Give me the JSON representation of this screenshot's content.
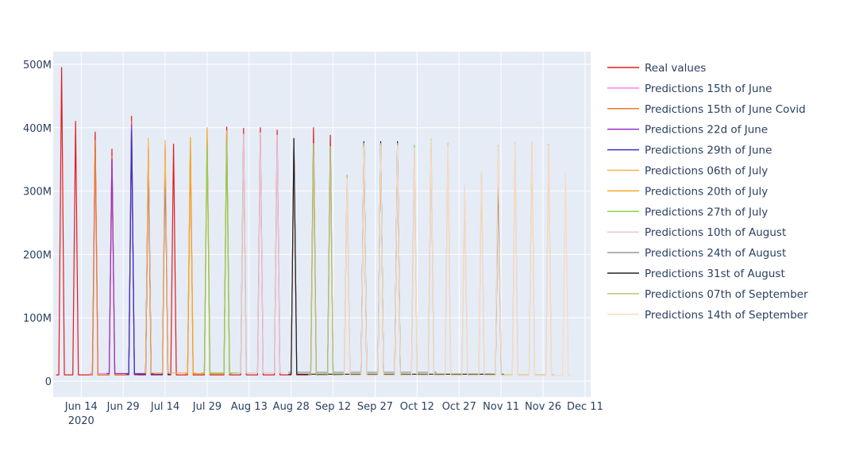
{
  "chart_data": {
    "type": "line",
    "title": "",
    "xlabel": "",
    "ylabel": "",
    "x_range": [
      "2020-06-04",
      "2020-12-13"
    ],
    "ylim": [
      -25000000,
      520000000
    ],
    "y_ticks": [
      {
        "value": 0,
        "label": "0"
      },
      {
        "value": 100000000,
        "label": "100M"
      },
      {
        "value": 200000000,
        "label": "200M"
      },
      {
        "value": 300000000,
        "label": "300M"
      },
      {
        "value": 400000000,
        "label": "400M"
      },
      {
        "value": 500000000,
        "label": "500M"
      }
    ],
    "x_ticks": [
      {
        "date": "2020-06-14",
        "label": "Jun 14",
        "sublabel": "2020"
      },
      {
        "date": "2020-06-29",
        "label": "Jun 29"
      },
      {
        "date": "2020-07-14",
        "label": "Jul 14"
      },
      {
        "date": "2020-07-29",
        "label": "Jul 29"
      },
      {
        "date": "2020-08-13",
        "label": "Aug 13"
      },
      {
        "date": "2020-08-28",
        "label": "Aug 28"
      },
      {
        "date": "2020-09-12",
        "label": "Sep 12"
      },
      {
        "date": "2020-09-27",
        "label": "Sep 27"
      },
      {
        "date": "2020-10-12",
        "label": "Oct 12"
      },
      {
        "date": "2020-10-27",
        "label": "Oct 27"
      },
      {
        "date": "2020-11-11",
        "label": "Nov 11"
      },
      {
        "date": "2020-11-26",
        "label": "Nov 26"
      },
      {
        "date": "2020-12-11",
        "label": "Dec 11"
      }
    ],
    "grid": true,
    "legend_position": "right",
    "series": [
      {
        "name": "Real values",
        "color": "#e41a1c",
        "spike_dates": [
          "2020-06-07",
          "2020-06-12",
          "2020-06-19",
          "2020-06-25",
          "2020-07-02",
          "2020-07-08",
          "2020-07-14",
          "2020-07-17",
          "2020-07-23",
          "2020-07-29",
          "2020-08-05",
          "2020-08-11",
          "2020-08-17",
          "2020-08-23",
          "2020-08-29",
          "2020-09-05",
          "2020-09-11"
        ],
        "spike_values": [
          495000000,
          410000000,
          393000000,
          366000000,
          418000000,
          370000000,
          370000000,
          374000000,
          372000000,
          382000000,
          401000000,
          399000000,
          400000000,
          396000000,
          382000000,
          400000000,
          388000000
        ],
        "base": 10000000
      },
      {
        "name": "Predictions 15th of June",
        "color": "#f781e8",
        "spike_dates": [
          "2020-06-19",
          "2020-06-25",
          "2020-07-02"
        ],
        "spike_values": [
          360000000,
          340000000,
          400000000
        ],
        "base": 12000000
      },
      {
        "name": "Predictions 15th of June Covid",
        "color": "#e87d2c",
        "spike_dates": [
          "2020-06-19",
          "2020-06-25",
          "2020-07-02"
        ],
        "spike_values": [
          380000000,
          355000000,
          410000000
        ],
        "base": 10000000
      },
      {
        "name": "Predictions 22d of June",
        "color": "#9b30c8",
        "spike_dates": [
          "2020-06-25",
          "2020-07-02",
          "2020-07-08"
        ],
        "spike_values": [
          350000000,
          405000000,
          365000000
        ],
        "base": 12000000
      },
      {
        "name": "Predictions 29th of June",
        "color": "#3333cc",
        "spike_dates": [
          "2020-07-02",
          "2020-07-08",
          "2020-07-14"
        ],
        "spike_values": [
          395000000,
          360000000,
          340000000
        ],
        "base": 11000000
      },
      {
        "name": "Predictions 06th of July",
        "color": "#ffb347",
        "spike_dates": [
          "2020-07-08",
          "2020-07-14",
          "2020-07-23"
        ],
        "spike_values": [
          383000000,
          380000000,
          380000000
        ],
        "base": 13000000
      },
      {
        "name": "Predictions 20th of July",
        "color": "#f5a623",
        "spike_dates": [
          "2020-07-23",
          "2020-07-29",
          "2020-08-05"
        ],
        "spike_values": [
          385000000,
          400000000,
          395000000
        ],
        "base": 12000000
      },
      {
        "name": "Predictions 27th of July",
        "color": "#8fd14f",
        "spike_dates": [
          "2020-07-29",
          "2020-08-05",
          "2020-08-11"
        ],
        "spike_values": [
          370000000,
          380000000,
          375000000
        ],
        "base": 13000000
      },
      {
        "name": "Predictions 10th of August",
        "color": "#e8c6d8",
        "spike_dates": [
          "2020-08-11",
          "2020-08-17",
          "2020-08-23"
        ],
        "spike_values": [
          390000000,
          392000000,
          388000000
        ],
        "base": 13000000
      },
      {
        "name": "Predictions 24th of August",
        "color": "#999999",
        "spike_dates": [
          "2020-08-29",
          "2020-09-05",
          "2020-09-11",
          "2020-09-17",
          "2020-09-23",
          "2020-09-29",
          "2020-10-05",
          "2020-10-11",
          "2020-10-17"
        ],
        "spike_values": [
          375000000,
          372000000,
          370000000,
          325000000,
          375000000,
          375000000,
          375000000,
          372000000,
          370000000
        ],
        "base": 14000000
      },
      {
        "name": "Predictions 31st of August",
        "color": "#222222",
        "spike_dates": [
          "2020-08-29",
          "2020-09-23",
          "2020-09-29",
          "2020-10-05",
          "2020-11-10"
        ],
        "spike_values": [
          383000000,
          378000000,
          378000000,
          378000000,
          333000000
        ],
        "base": 11000000
      },
      {
        "name": "Predictions 07th of September",
        "color": "#b5c96a",
        "spike_dates": [
          "2020-09-05",
          "2020-09-11",
          "2020-09-17",
          "2020-09-23",
          "2020-09-29",
          "2020-10-05",
          "2020-10-11",
          "2020-10-17",
          "2020-10-23",
          "2020-10-29",
          "2020-11-04",
          "2020-11-10",
          "2020-11-16",
          "2020-11-22",
          "2020-11-28"
        ],
        "spike_values": [
          375000000,
          370000000,
          325000000,
          375000000,
          375000000,
          375000000,
          370000000,
          382000000,
          375000000,
          300000000,
          330000000,
          372000000,
          376000000,
          376000000,
          374000000
        ],
        "base": 10000000
      },
      {
        "name": "Predictions 14th of September",
        "color": "#fbd8c4",
        "spike_dates": [
          "2020-09-17",
          "2020-09-23",
          "2020-09-29",
          "2020-10-05",
          "2020-10-11",
          "2020-10-17",
          "2020-10-23",
          "2020-10-29",
          "2020-11-04",
          "2020-11-10",
          "2020-11-16",
          "2020-11-22",
          "2020-11-28",
          "2020-12-04"
        ],
        "spike_values": [
          320000000,
          370000000,
          372000000,
          372000000,
          368000000,
          380000000,
          372000000,
          310000000,
          330000000,
          370000000,
          375000000,
          375000000,
          372000000,
          330000000
        ],
        "base": 9000000
      }
    ]
  }
}
